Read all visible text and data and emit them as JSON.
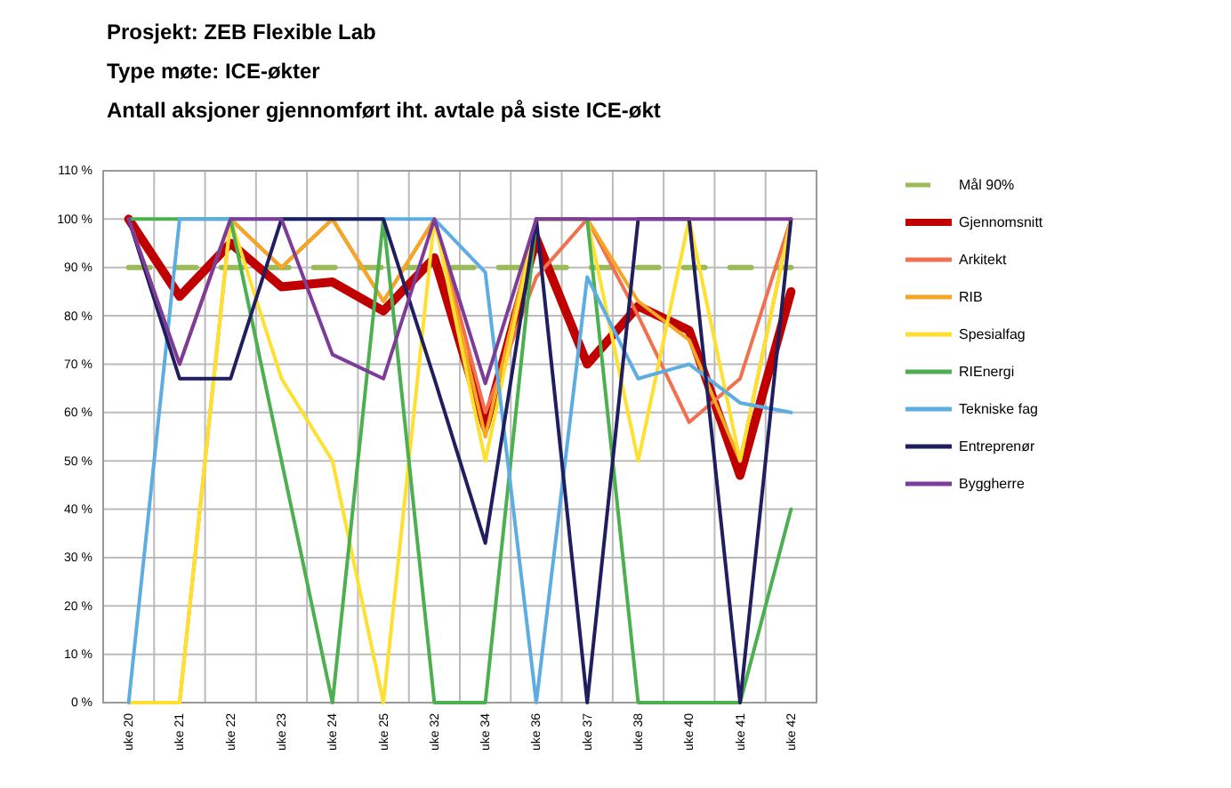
{
  "chart_data": {
    "type": "line",
    "title": "Prosjekt: ZEB Flexible Lab",
    "subtitle": "Type møte: ICE-økter\nAntall aksjoner gjennomført iht. avtale på siste ICE-økt",
    "categories": [
      "uke 20",
      "uke 21",
      "uke 22",
      "uke 23",
      "uke 24",
      "uke 25",
      "uke 32",
      "uke 34",
      "uke 36",
      "uke 37",
      "uke 38",
      "uke 40",
      "uke 41",
      "uke 42"
    ],
    "series": [
      {
        "name": "Mål 90%",
        "color": "#9bbb59",
        "line_style": "dashed",
        "values": [
          90,
          90,
          90,
          90,
          90,
          90,
          90,
          90,
          90,
          90,
          90,
          90,
          90,
          90
        ]
      },
      {
        "name": "Gjennomsnitt",
        "color": "#c00000",
        "values": [
          100,
          84,
          95,
          86,
          87,
          81,
          92,
          57,
          96,
          70,
          82,
          77,
          47,
          85
        ]
      },
      {
        "name": "Arkitekt",
        "color": "#f07050",
        "values": [
          100,
          70,
          100,
          90,
          100,
          83,
          100,
          60,
          88,
          100,
          80,
          58,
          67,
          100
        ]
      },
      {
        "name": "RIB",
        "color": "#f5a623",
        "values": [
          0,
          0,
          100,
          90,
          100,
          83,
          100,
          55,
          100,
          100,
          83,
          75,
          50,
          100
        ]
      },
      {
        "name": "Spesialfag",
        "color": "#ffe030",
        "values": [
          0,
          0,
          100,
          67,
          50,
          0,
          100,
          50,
          100,
          100,
          50,
          100,
          50,
          100
        ]
      },
      {
        "name": "RIEnergi",
        "color": "#4caf50",
        "values": [
          100,
          100,
          100,
          50,
          0,
          100,
          0,
          0,
          100,
          100,
          0,
          0,
          0,
          40
        ]
      },
      {
        "name": "Tekniske fag",
        "color": "#5dade2",
        "values": [
          0,
          100,
          100,
          100,
          100,
          100,
          100,
          89,
          0,
          88,
          67,
          70,
          62,
          60
        ]
      },
      {
        "name": "Entreprenør",
        "color": "#1f1f5f",
        "values": [
          100,
          67,
          67,
          100,
          100,
          100,
          67,
          33,
          100,
          0,
          100,
          100,
          0,
          100
        ]
      },
      {
        "name": "Byggherre",
        "color": "#7d3c98",
        "values": [
          100,
          70,
          100,
          100,
          72,
          67,
          100,
          66,
          100,
          100,
          100,
          100,
          100,
          100
        ]
      }
    ],
    "ylim": [
      0,
      110
    ],
    "yticks": [
      {
        "value": 0,
        "label": "0 %"
      },
      {
        "value": 10,
        "label": "10 %"
      },
      {
        "value": 20,
        "label": "20 %"
      },
      {
        "value": 30,
        "label": "30 %"
      },
      {
        "value": 40,
        "label": "40 %"
      },
      {
        "value": 50,
        "label": "50 %"
      },
      {
        "value": 60,
        "label": "60 %"
      },
      {
        "value": 70,
        "label": "70 %"
      },
      {
        "value": 80,
        "label": "80 %"
      },
      {
        "value": 90,
        "label": "90 %"
      },
      {
        "value": 100,
        "label": "100 %"
      },
      {
        "value": 110,
        "label": "110 %"
      }
    ],
    "grid": true,
    "legend": "right"
  }
}
